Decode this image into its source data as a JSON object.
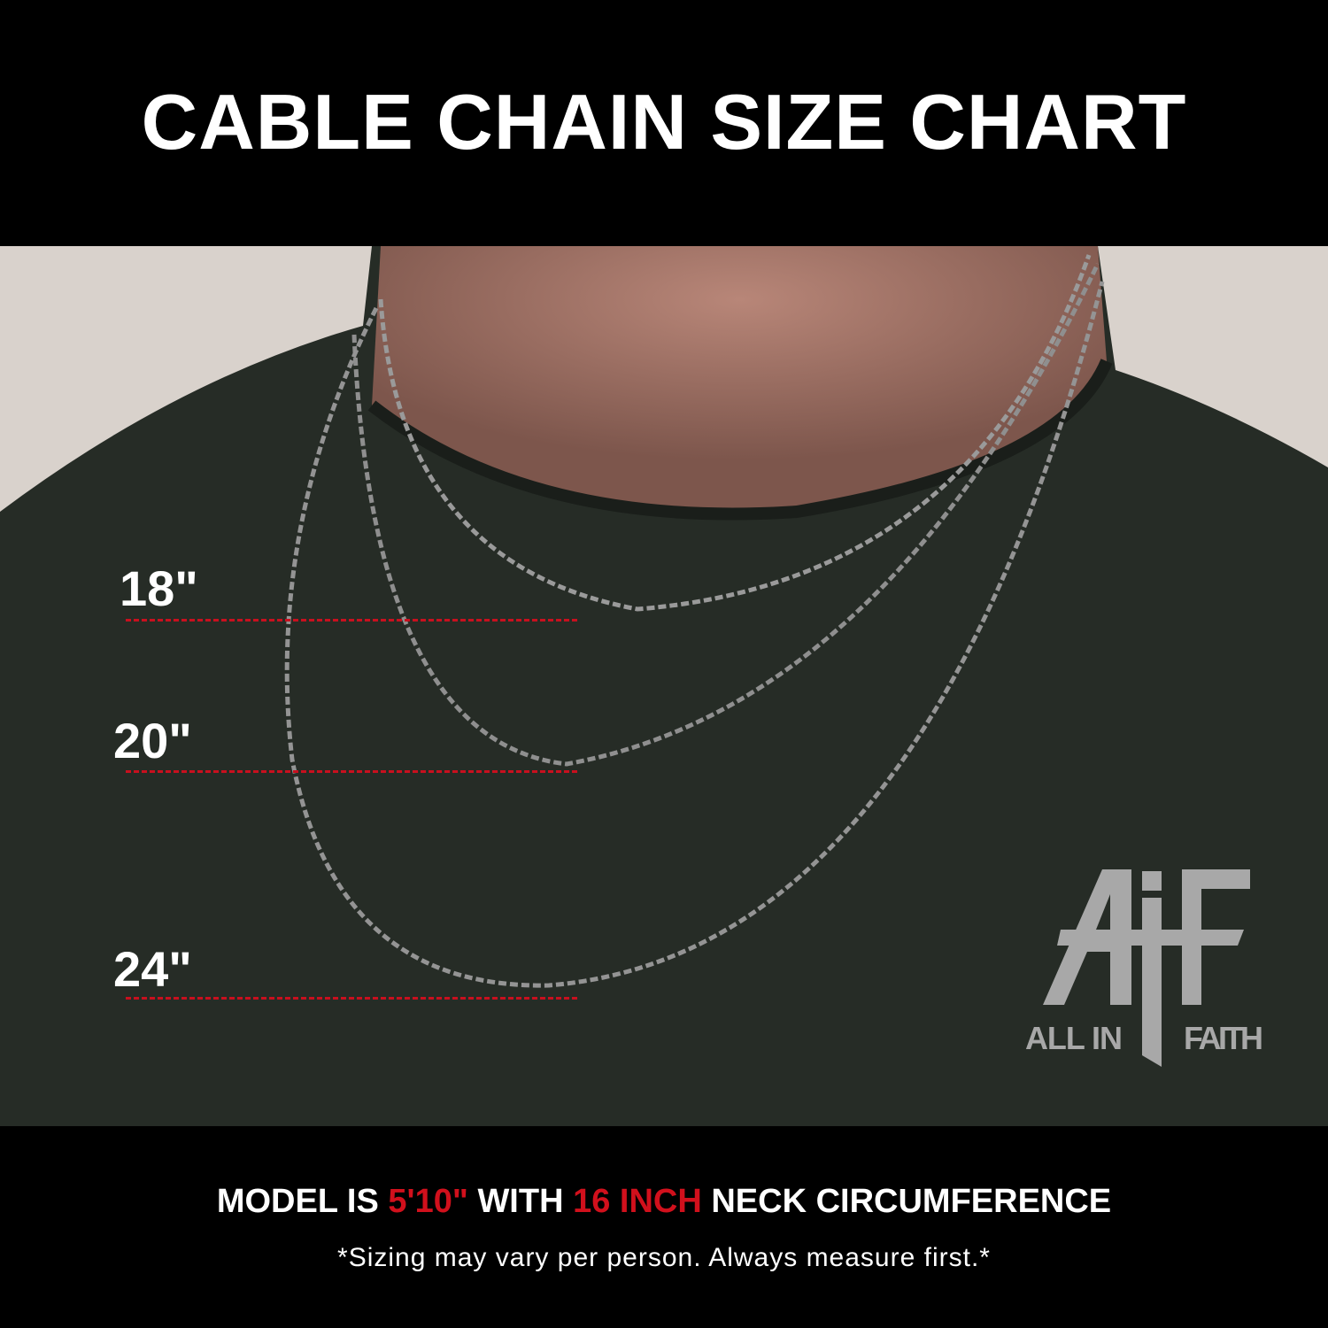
{
  "header": {
    "title": "CABLE CHAIN SIZE CHART"
  },
  "sizes": [
    {
      "label": "18\""
    },
    {
      "label": "20\""
    },
    {
      "label": "24\""
    }
  ],
  "logo": {
    "mark": "AiF",
    "left_text": "ALL IN",
    "right_text": "FAITH"
  },
  "footer": {
    "model_prefix": "MODEL IS",
    "height": "5'10\"",
    "with": "WITH",
    "neck": "16 INCH",
    "suffix": "NECK CIRCUMFERENCE",
    "disclaimer": "*Sizing may vary per person. Always measure first.*"
  },
  "colors": {
    "accent_red": "#d1101c",
    "background": "#000000",
    "shirt": "#252b25",
    "logo_gray": "#a8a8a8"
  }
}
